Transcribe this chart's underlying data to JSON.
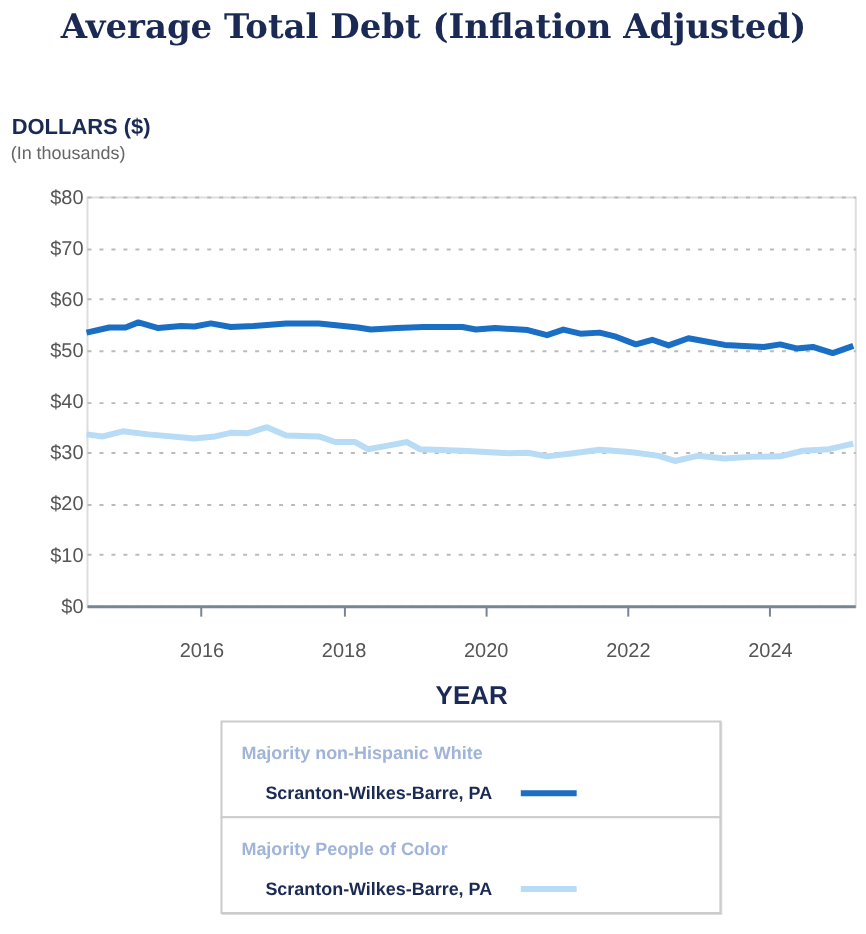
{
  "chart_data": {
    "type": "line",
    "title": "Average Total Debt (Inflation Adjusted)",
    "ylabel": "DOLLARS ($)",
    "xlabel": "YEAR",
    "annotations": [
      "(In thousands)",
      "Majority non-Hispanic White",
      "Majority People of Color"
    ],
    "xlim": [
      2014.39,
      2025.2
    ],
    "xticks": [
      2016,
      2018,
      2020,
      2022,
      2024
    ],
    "ylim": [
      0,
      80
    ],
    "yticks": [
      {
        "value": 0,
        "label": "$0"
      },
      {
        "value": 10,
        "label": "$10"
      },
      {
        "value": 20,
        "label": "$20"
      },
      {
        "value": 30,
        "label": "$30"
      },
      {
        "value": 40,
        "label": "$40"
      },
      {
        "value": 50,
        "label": "$50"
      },
      {
        "value": 60,
        "label": "$60"
      },
      {
        "value": 70,
        "label": "$70"
      },
      {
        "value": 80,
        "label": "$80"
      }
    ],
    "grid": "y",
    "legend": "bottom",
    "line_style": "solid",
    "series": [
      {
        "name": "Scranton-Wilkes-Barre, PA",
        "color": "#1a6fc4",
        "x": [
          2014.39,
          2014.71,
          2014.94,
          2015.12,
          2015.4,
          2015.72,
          2015.91,
          2016.14,
          2016.42,
          2016.74,
          2017.2,
          2017.66,
          2018.21,
          2018.39,
          2018.76,
          2019.13,
          2019.68,
          2019.87,
          2020.14,
          2020.6,
          2020.87,
          2021.1,
          2021.34,
          2021.61,
          2021.84,
          2022.12,
          2022.35,
          2022.58,
          2022.86,
          2023.09,
          2023.37,
          2023.64,
          2023.92,
          2024.15,
          2024.38,
          2024.61,
          2024.89,
          2025.18
        ],
        "values": [
          53.4,
          54.4,
          54.4,
          55.4,
          54.3,
          54.7,
          54.6,
          55.2,
          54.5,
          54.7,
          55.2,
          55.2,
          54.4,
          54.0,
          54.3,
          54.5,
          54.5,
          54.0,
          54.3,
          53.9,
          52.9,
          54.0,
          53.2,
          53.4,
          52.6,
          51.1,
          52.0,
          50.9,
          52.3,
          51.7,
          51.0,
          50.8,
          50.6,
          51.1,
          50.3,
          50.6,
          49.4,
          50.8
        ]
      },
      {
        "name": "Scranton-Wilkes-Barre, PA",
        "color": "#b8dcf5",
        "x": [
          2014.39,
          2014.62,
          2014.9,
          2015.26,
          2015.91,
          2016.2,
          2016.42,
          2016.65,
          2016.93,
          2017.2,
          2017.66,
          2017.89,
          2018.17,
          2018.35,
          2018.67,
          2018.9,
          2019.08,
          2019.68,
          2020.33,
          2020.6,
          2020.87,
          2021.24,
          2021.61,
          2022.07,
          2022.44,
          2022.67,
          2022.99,
          2023.37,
          2023.73,
          2024.15,
          2024.47,
          2024.84,
          2025.18
        ],
        "values": [
          33.5,
          33.1,
          34.1,
          33.5,
          32.7,
          33.1,
          33.8,
          33.7,
          34.9,
          33.3,
          33.1,
          32.0,
          32.0,
          30.6,
          31.4,
          32.0,
          30.6,
          30.3,
          29.8,
          29.9,
          29.2,
          29.8,
          30.5,
          30.0,
          29.3,
          28.3,
          29.3,
          28.8,
          29.1,
          29.2,
          30.3,
          30.6,
          31.7
        ]
      }
    ]
  }
}
